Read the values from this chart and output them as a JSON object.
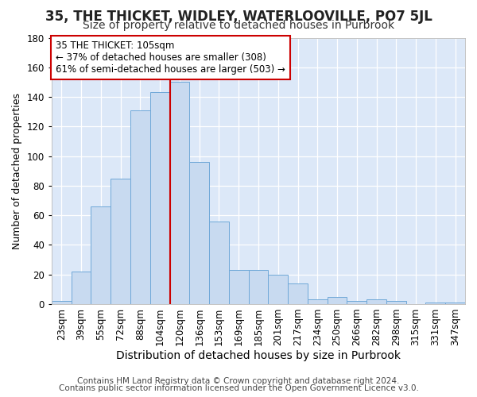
{
  "title1": "35, THE THICKET, WIDLEY, WATERLOOVILLE, PO7 5JL",
  "title2": "Size of property relative to detached houses in Purbrook",
  "xlabel": "Distribution of detached houses by size in Purbrook",
  "ylabel": "Number of detached properties",
  "footer1": "Contains HM Land Registry data © Crown copyright and database right 2024.",
  "footer2": "Contains public sector information licensed under the Open Government Licence v3.0.",
  "annotation_title": "35 THE THICKET: 105sqm",
  "annotation_line1": "← 37% of detached houses are smaller (308)",
  "annotation_line2": "61% of semi-detached houses are larger (503) →",
  "bar_labels": [
    "23sqm",
    "39sqm",
    "55sqm",
    "72sqm",
    "88sqm",
    "104sqm",
    "120sqm",
    "136sqm",
    "153sqm",
    "169sqm",
    "185sqm",
    "201sqm",
    "217sqm",
    "234sqm",
    "250sqm",
    "266sqm",
    "282sqm",
    "298sqm",
    "315sqm",
    "331sqm",
    "347sqm"
  ],
  "bar_heights": [
    2,
    22,
    66,
    85,
    131,
    143,
    150,
    96,
    56,
    23,
    23,
    20,
    14,
    3,
    5,
    2,
    3,
    2,
    0,
    1,
    1
  ],
  "bar_color": "#c8daf0",
  "bar_edge_color": "#6fa8d8",
  "vline_color": "#cc0000",
  "vline_x": 5.5,
  "ylim": [
    0,
    180
  ],
  "yticks": [
    0,
    20,
    40,
    60,
    80,
    100,
    120,
    140,
    160,
    180
  ],
  "fig_bg_color": "#ffffff",
  "plot_bg_color": "#dce8f8",
  "annotation_box_color": "#ffffff",
  "annotation_border_color": "#cc0000",
  "title1_fontsize": 12,
  "title2_fontsize": 10,
  "xlabel_fontsize": 10,
  "ylabel_fontsize": 9,
  "tick_fontsize": 8.5,
  "footer_fontsize": 7.5,
  "annotation_fontsize": 8.5
}
